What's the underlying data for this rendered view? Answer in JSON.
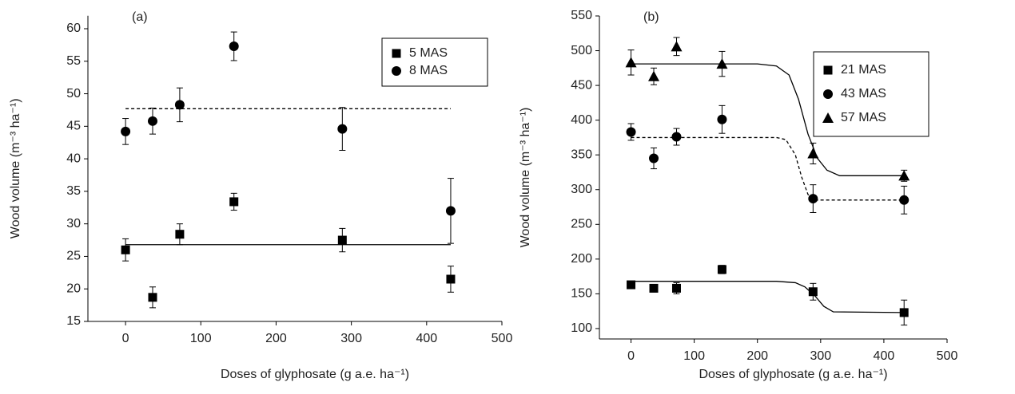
{
  "chart_data": [
    {
      "type": "scatter",
      "panel_label": "(a)",
      "x_label": "Doses of glyphosate (g a.e. ha⁻¹)",
      "y_label": "Wood volume (m⁻³ ha⁻¹)",
      "xlim": [
        -50,
        500
      ],
      "xticks": [
        0,
        100,
        200,
        300,
        400,
        500
      ],
      "ylim": [
        15,
        62
      ],
      "yticks": [
        15,
        20,
        25,
        30,
        35,
        40,
        45,
        50,
        55,
        60
      ],
      "legend": "top-right",
      "series": [
        {
          "name": "5 MAS",
          "color": "#000000",
          "marker": "square",
          "x": [
            0,
            36,
            72,
            144,
            288,
            432
          ],
          "values": [
            26,
            18.7,
            28.4,
            33.4,
            27.5,
            21.5
          ],
          "errors": [
            1.7,
            1.6,
            1.6,
            1.3,
            1.8,
            2
          ],
          "fit_x": [
            0,
            432
          ],
          "fit_values": [
            26.8,
            26.8
          ],
          "line_style": "solid"
        },
        {
          "name": "8 MAS",
          "color": "#000000",
          "marker": "circle",
          "x": [
            0,
            36,
            72,
            144,
            288,
            432
          ],
          "values": [
            44.2,
            45.8,
            48.3,
            57.3,
            44.6,
            32
          ],
          "errors": [
            2,
            2,
            2.6,
            2.2,
            3.3,
            5
          ],
          "fit_x": [
            0,
            432
          ],
          "fit_values": [
            47.7,
            47.7
          ],
          "line_style": "dashed"
        }
      ]
    },
    {
      "type": "scatter",
      "panel_label": "(b)",
      "x_label": "Doses of glyphosate (g a.e. ha⁻¹)",
      "y_label": "Wood volume (m⁻³ ha⁻¹)",
      "xlim": [
        -50,
        500
      ],
      "xticks": [
        0,
        100,
        200,
        300,
        400,
        500
      ],
      "ylim": [
        85,
        550
      ],
      "yticks": [
        100,
        150,
        200,
        250,
        300,
        350,
        400,
        450,
        500,
        550
      ],
      "legend": "top-right",
      "series": [
        {
          "name": "21 MAS",
          "color": "#000000",
          "marker": "square",
          "x": [
            0,
            36,
            72,
            144,
            288,
            432
          ],
          "values": [
            163,
            158,
            158,
            185,
            153,
            123
          ],
          "errors": [
            4,
            5,
            8,
            6,
            12,
            18
          ],
          "fit_x": [
            0,
            230,
            260,
            275,
            290,
            305,
            320,
            432
          ],
          "fit_values": [
            168,
            168,
            166,
            160,
            148,
            132,
            124,
            123
          ],
          "line_style": "solid"
        },
        {
          "name": "43 MAS",
          "color": "#000000",
          "marker": "circle",
          "x": [
            0,
            36,
            72,
            144,
            288,
            432
          ],
          "values": [
            383,
            345,
            376,
            401,
            287,
            285
          ],
          "errors": [
            12,
            15,
            12,
            20,
            20,
            20
          ],
          "fit_x": [
            0,
            230,
            245,
            260,
            270,
            280,
            290,
            432
          ],
          "fit_values": [
            375,
            375,
            372,
            350,
            318,
            293,
            285,
            285
          ],
          "line_style": "dashed"
        },
        {
          "name": "57 MAS",
          "color": "#000000",
          "marker": "triangle",
          "x": [
            0,
            36,
            72,
            144,
            288,
            432
          ],
          "values": [
            483,
            463,
            506,
            481,
            352,
            320
          ],
          "errors": [
            18,
            12,
            13,
            18,
            15,
            8
          ],
          "fit_x": [
            0,
            200,
            230,
            250,
            265,
            280,
            295,
            310,
            330,
            432
          ],
          "fit_values": [
            481,
            481,
            478,
            465,
            430,
            380,
            345,
            328,
            320,
            320
          ],
          "line_style": "solid"
        }
      ]
    }
  ]
}
